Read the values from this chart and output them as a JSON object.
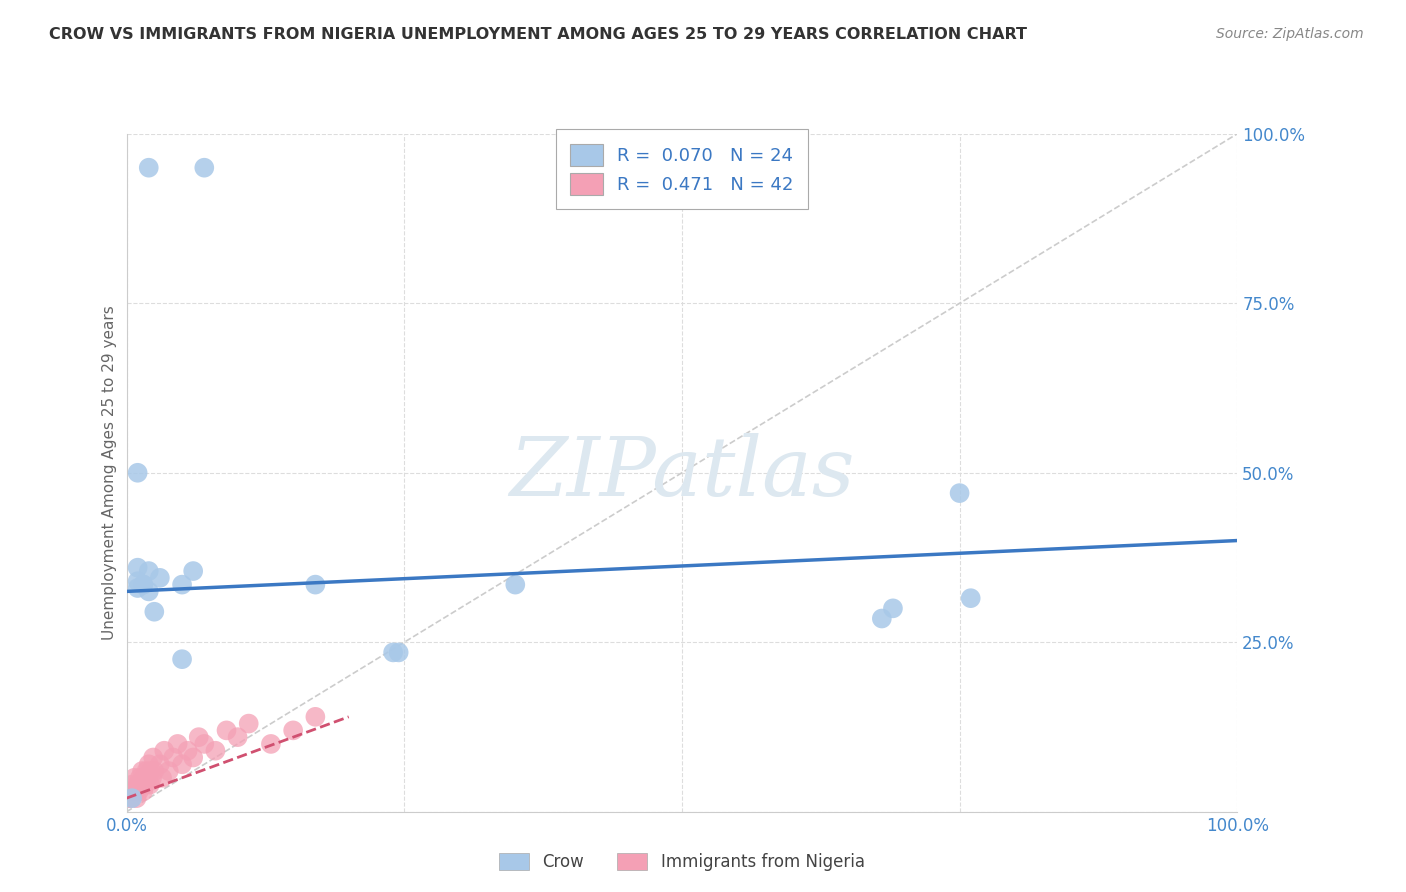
{
  "title": "CROW VS IMMIGRANTS FROM NIGERIA UNEMPLOYMENT AMONG AGES 25 TO 29 YEARS CORRELATION CHART",
  "source": "Source: ZipAtlas.com",
  "ylabel": "Unemployment Among Ages 25 to 29 years",
  "xlim": [
    0,
    1
  ],
  "ylim": [
    0,
    1
  ],
  "ytick_values": [
    0.0,
    0.25,
    0.5,
    0.75,
    1.0
  ],
  "ytick_labels": [
    "",
    "25.0%",
    "50.0%",
    "75.0%",
    "100.0%"
  ],
  "xtick_values": [
    0.0,
    0.25,
    0.5,
    0.75,
    1.0
  ],
  "xtick_labels": [
    "0.0%",
    "",
    "",
    "",
    "100.0%"
  ],
  "crow_color": "#a8c8e8",
  "crow_edge_color": "#7aafd0",
  "nigeria_color": "#f4a0b5",
  "nigeria_edge_color": "#e080a0",
  "crow_line_color": "#3b78c3",
  "nigeria_line_color": "#d05070",
  "diagonal_color": "#cccccc",
  "grid_color": "#dddddd",
  "legend_crow_R": "0.070",
  "legend_crow_N": "24",
  "legend_nigeria_R": "0.471",
  "legend_nigeria_N": "42",
  "legend_value_color": "#3b78c3",
  "crow_x": [
    0.02,
    0.07,
    0.01,
    0.01,
    0.02,
    0.03,
    0.06,
    0.05,
    0.17,
    0.35,
    0.68,
    0.69,
    0.75,
    0.76,
    0.01,
    0.015,
    0.02,
    0.025,
    0.05,
    0.24,
    0.245,
    0.015,
    0.01,
    0.005
  ],
  "crow_y": [
    0.95,
    0.95,
    0.5,
    0.36,
    0.355,
    0.345,
    0.355,
    0.335,
    0.335,
    0.335,
    0.285,
    0.3,
    0.47,
    0.315,
    0.34,
    0.335,
    0.325,
    0.295,
    0.225,
    0.235,
    0.235,
    0.335,
    0.33,
    0.02
  ],
  "nigeria_x": [
    0.002,
    0.003,
    0.004,
    0.005,
    0.006,
    0.007,
    0.008,
    0.009,
    0.01,
    0.011,
    0.012,
    0.013,
    0.014,
    0.015,
    0.016,
    0.017,
    0.018,
    0.019,
    0.02,
    0.021,
    0.022,
    0.023,
    0.024,
    0.025,
    0.03,
    0.032,
    0.034,
    0.038,
    0.042,
    0.046,
    0.05,
    0.055,
    0.06,
    0.065,
    0.07,
    0.08,
    0.09,
    0.1,
    0.11,
    0.13,
    0.15,
    0.17
  ],
  "nigeria_y": [
    0.02,
    0.03,
    0.02,
    0.04,
    0.03,
    0.05,
    0.03,
    0.02,
    0.04,
    0.03,
    0.05,
    0.04,
    0.06,
    0.03,
    0.05,
    0.04,
    0.06,
    0.05,
    0.07,
    0.04,
    0.06,
    0.05,
    0.08,
    0.06,
    0.07,
    0.05,
    0.09,
    0.06,
    0.08,
    0.1,
    0.07,
    0.09,
    0.08,
    0.11,
    0.1,
    0.09,
    0.12,
    0.11,
    0.13,
    0.1,
    0.12,
    0.14
  ],
  "watermark_text": "ZIPatlas",
  "watermark_color": "#dde8f0",
  "background_color": "#ffffff",
  "title_color": "#333333",
  "source_color": "#888888",
  "tick_color": "#4488cc",
  "label_color": "#666666"
}
